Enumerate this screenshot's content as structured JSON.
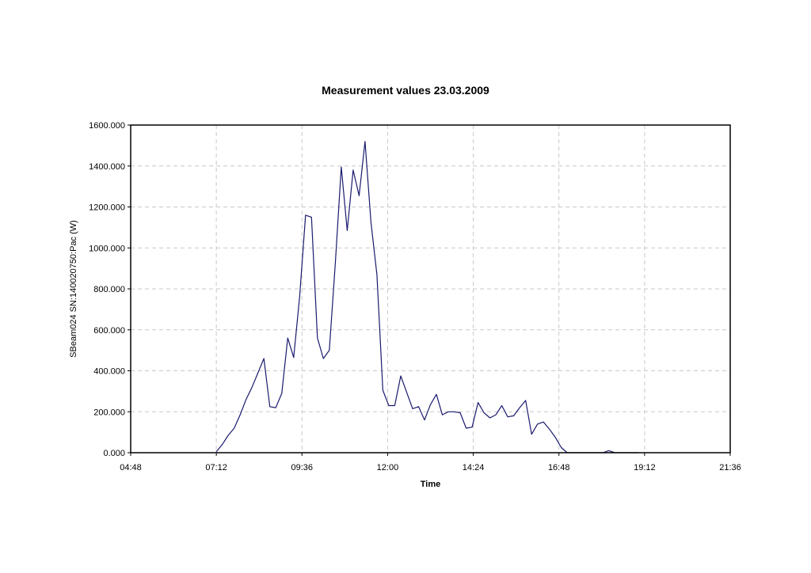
{
  "chart_data": {
    "type": "line",
    "title": "Measurement values 23.03.2009",
    "xlabel": "Time",
    "ylabel": "SBeam024 SN:140020750:Pac (W)",
    "xlim": [
      "04:48",
      "21:36"
    ],
    "ylim": [
      0,
      1600
    ],
    "x_ticks": [
      "04:48",
      "07:12",
      "09:36",
      "12:00",
      "14:24",
      "16:48",
      "19:12",
      "21:36"
    ],
    "y_ticks": [
      "0.000",
      "200.000",
      "400.000",
      "600.000",
      "800.000",
      "1000.000",
      "1200.000",
      "1400.000",
      "1600.000"
    ],
    "grid": true,
    "line_color": "#1a1a6e",
    "series": [
      {
        "x": [
          "07:12",
          "07:22",
          "07:32",
          "07:42",
          "07:52",
          "08:02",
          "08:12",
          "08:22",
          "08:32",
          "08:42",
          "08:52",
          "09:02",
          "09:12",
          "09:22",
          "09:32",
          "09:42",
          "09:52",
          "10:02",
          "10:12",
          "10:22",
          "10:32",
          "10:42",
          "10:52",
          "11:02",
          "11:12",
          "11:22",
          "11:32",
          "11:42",
          "11:52",
          "12:02",
          "12:12",
          "12:22",
          "12:32",
          "12:42",
          "12:52",
          "13:02",
          "13:12",
          "13:22",
          "13:32",
          "13:42",
          "13:52",
          "14:02",
          "14:12",
          "14:22",
          "14:32",
          "14:42",
          "14:52",
          "15:02",
          "15:12",
          "15:22",
          "15:32",
          "15:42",
          "15:52",
          "16:02",
          "16:12",
          "16:22",
          "16:32",
          "16:42",
          "16:52",
          "17:02",
          "17:12",
          "17:22",
          "17:32",
          "17:42",
          "17:52",
          "18:02",
          "18:12",
          "18:22",
          "18:32",
          "18:42",
          "18:52",
          "19:02"
        ],
        "y": [
          5,
          40,
          85,
          120,
          185,
          260,
          320,
          390,
          460,
          225,
          220,
          290,
          560,
          465,
          760,
          1160,
          1150,
          560,
          460,
          500,
          920,
          1395,
          1085,
          1380,
          1255,
          1520,
          1125,
          870,
          305,
          230,
          230,
          375,
          295,
          215,
          225,
          160,
          235,
          285,
          185,
          200,
          200,
          195,
          120,
          125,
          245,
          195,
          170,
          185,
          230,
          175,
          180,
          220,
          255,
          90,
          140,
          150,
          115,
          75,
          25,
          0,
          0,
          0,
          0,
          0,
          0,
          0,
          10,
          0,
          0,
          0,
          0,
          0
        ]
      }
    ]
  }
}
